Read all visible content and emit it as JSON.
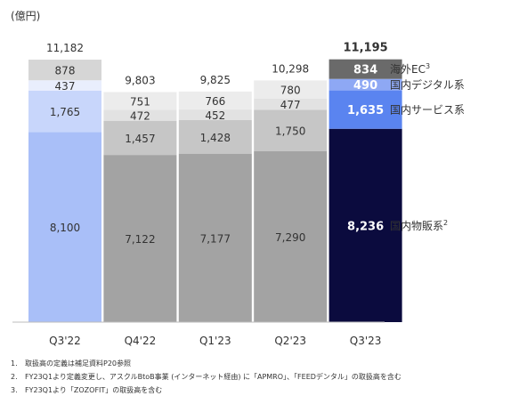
{
  "chart_data": {
    "type": "bar",
    "stacked": true,
    "unit_label": "(億円)",
    "categories": [
      "Q3'22",
      "Q4'22",
      "Q1'23",
      "Q2'23",
      "Q3'23"
    ],
    "totals": [
      "11,182",
      "9,803",
      "9,825",
      "10,298",
      "11,195"
    ],
    "series": [
      {
        "name": "国内物販系",
        "superscript": "2",
        "values": [
          8100,
          7122,
          7177,
          7290,
          8236
        ],
        "labels": [
          "8,100",
          "7,122",
          "7,177",
          "7,290",
          "8,236"
        ]
      },
      {
        "name": "国内サービス系",
        "superscript": "",
        "values": [
          1765,
          1457,
          1428,
          1750,
          1635
        ],
        "labels": [
          "1,765",
          "1,457",
          "1,428",
          "1,750",
          "1,635"
        ]
      },
      {
        "name": "国内デジタル系",
        "superscript": "",
        "values": [
          437,
          472,
          452,
          477,
          490
        ],
        "labels": [
          "437",
          "472",
          "452",
          "477",
          "490"
        ]
      },
      {
        "name": "海外EC",
        "superscript": "3",
        "values": [
          878,
          751,
          766,
          780,
          834
        ],
        "labels": [
          "878",
          "751",
          "766",
          "780",
          "834"
        ]
      }
    ],
    "colors": {
      "first": [
        "#a9bff8",
        "#c8d6fb",
        "#e9eefd",
        "#d6d6d6"
      ],
      "middle": [
        "#a3a3a3",
        "#c6c6c6",
        "#e2e2e2",
        "#ececec"
      ],
      "last": [
        "#0b0b3e",
        "#5a84f0",
        "#8ea8f4",
        "#6a6a6a"
      ]
    },
    "highlight_index": 4,
    "legend_position": "right",
    "grid": false
  },
  "footnotes": [
    {
      "num": "1.",
      "text": "取扱高の定義は補足資料P20参照"
    },
    {
      "num": "2.",
      "text": "FY23Q1より定義変更し、アスクルBtoB事業 (インターネット経由) に「APMRO」、「FEEDデンタル」の取扱高を含む"
    },
    {
      "num": "3.",
      "text": "FY23Q1より「ZOZOFIT」の取扱高を含む"
    }
  ]
}
